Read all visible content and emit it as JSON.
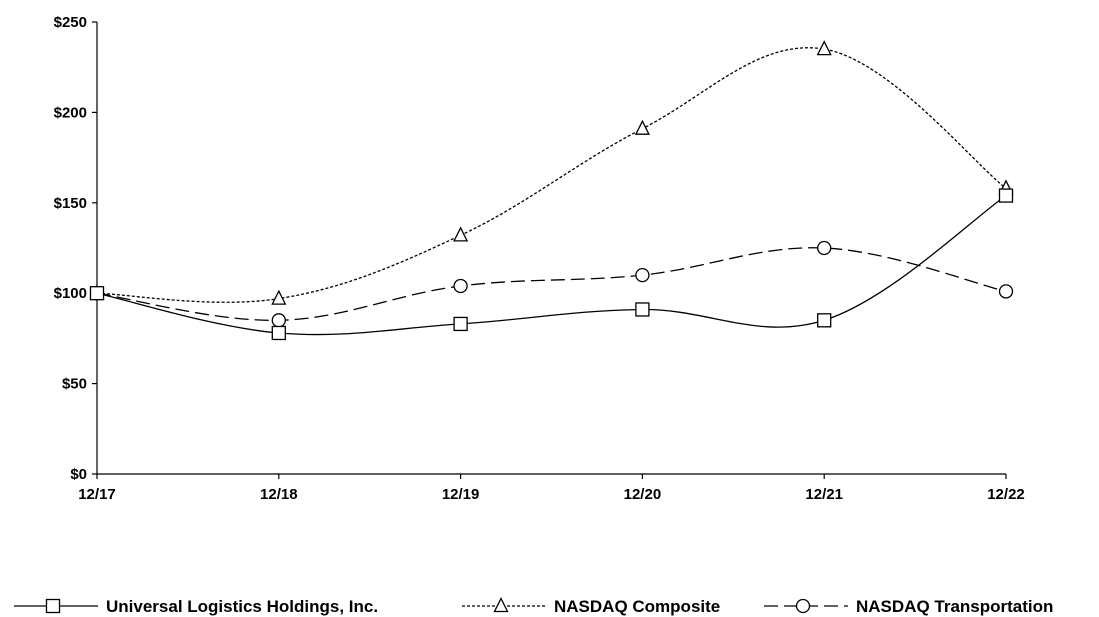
{
  "chart_data": {
    "type": "line",
    "title": "",
    "xlabel": "",
    "ylabel": "",
    "categories": [
      "12/17",
      "12/18",
      "12/19",
      "12/20",
      "12/21",
      "12/22"
    ],
    "y_ticks": [
      "$0",
      "$50",
      "$100",
      "$150",
      "$200",
      "$250"
    ],
    "ylim": [
      0,
      250
    ],
    "grid": false,
    "legend_position": "bottom",
    "series": [
      {
        "name": "Universal Logistics Holdings, Inc.",
        "marker": "square",
        "dash": "solid",
        "values": [
          100,
          78,
          83,
          91,
          85,
          154
        ]
      },
      {
        "name": "NASDAQ Composite",
        "marker": "triangle",
        "dash": "dotted",
        "values": [
          100,
          97,
          132,
          191,
          235,
          158
        ]
      },
      {
        "name": "NASDAQ Transportation",
        "marker": "circle",
        "dash": "dashed",
        "values": [
          100,
          85,
          104,
          110,
          125,
          101
        ]
      }
    ]
  }
}
